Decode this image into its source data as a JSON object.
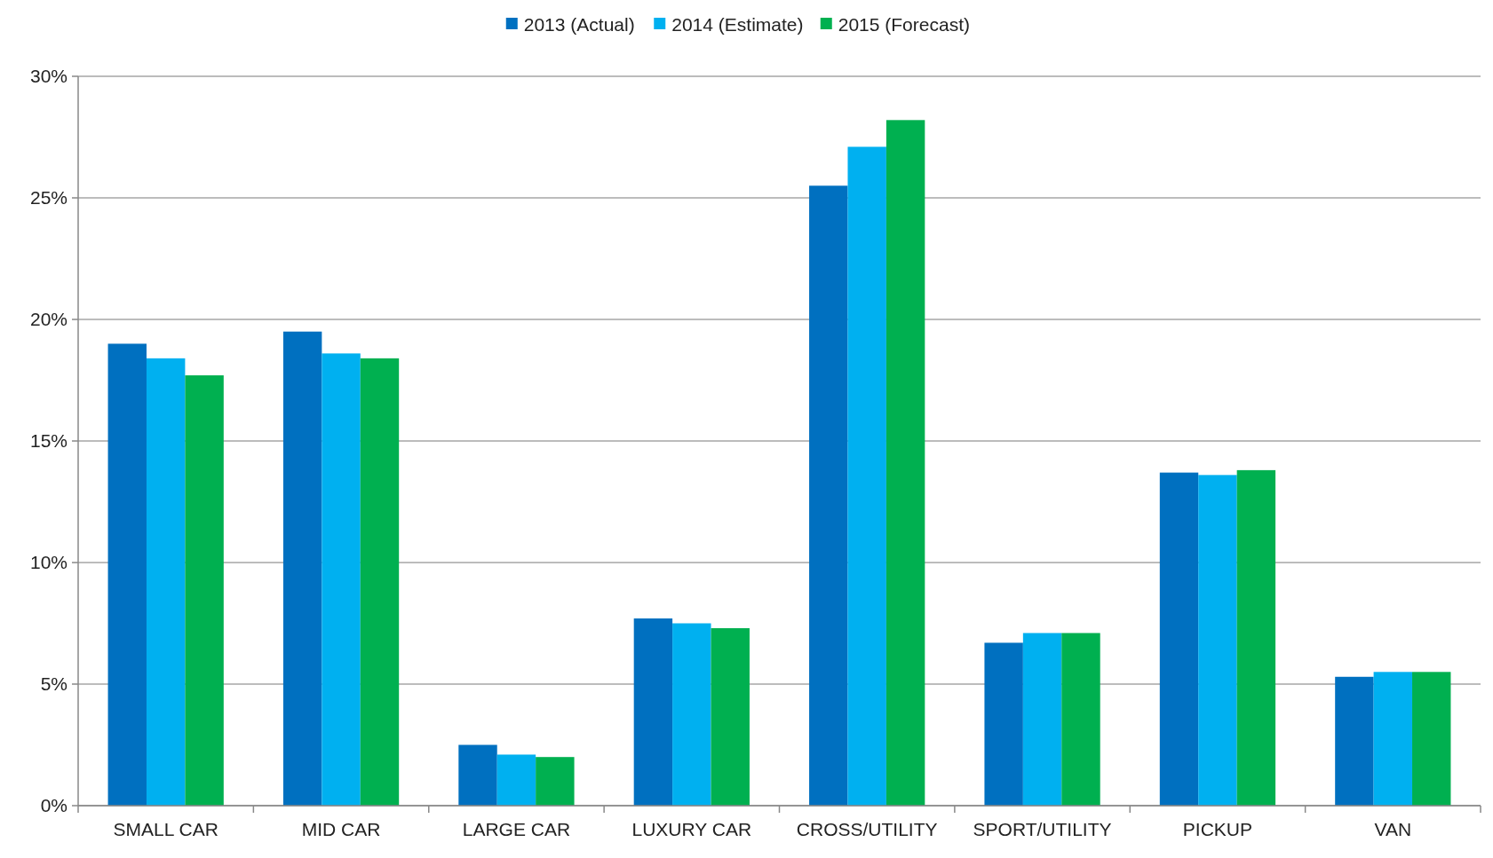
{
  "chart_data": {
    "type": "bar",
    "categories": [
      "SMALL CAR",
      "MID CAR",
      "LARGE CAR",
      "LUXURY CAR",
      "CROSS/UTILITY",
      "SPORT/UTILITY",
      "PICKUP",
      "VAN"
    ],
    "series": [
      {
        "name": "2013 (Actual)",
        "color": "#0070c0",
        "values": [
          19.0,
          19.5,
          2.5,
          7.7,
          25.5,
          6.7,
          13.7,
          5.3
        ]
      },
      {
        "name": "2014 (Estimate)",
        "color": "#00b0f0",
        "values": [
          18.4,
          18.6,
          2.1,
          7.5,
          27.1,
          7.1,
          13.6,
          5.5
        ]
      },
      {
        "name": "2015 (Forecast)",
        "color": "#00b050",
        "values": [
          17.7,
          18.4,
          2.0,
          7.3,
          28.2,
          7.1,
          13.8,
          5.5
        ]
      }
    ],
    "ylim": [
      0,
      30
    ],
    "yticks": [
      {
        "value": 0,
        "label": "0%"
      },
      {
        "value": 5,
        "label": "5%"
      },
      {
        "value": 10,
        "label": "10%"
      },
      {
        "value": 15,
        "label": "15%"
      },
      {
        "value": 20,
        "label": "20%"
      },
      {
        "value": 25,
        "label": "25%"
      },
      {
        "value": 30,
        "label": "30%"
      }
    ],
    "grid": "y",
    "legend": "top"
  }
}
